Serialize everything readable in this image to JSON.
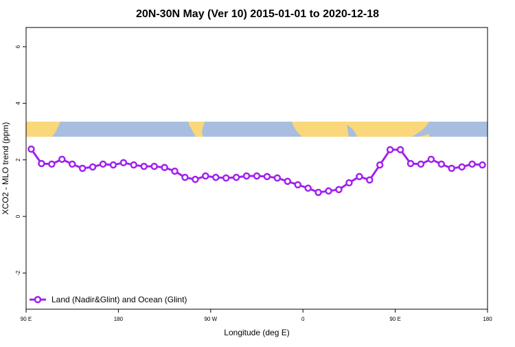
{
  "chart_data": {
    "type": "line",
    "title": "20N-30N May (Ver 10)   2015-01-01 to 2020-12-18",
    "x_label": "Longitude (deg E)",
    "y_label": "XCO2 - MLO trend (ppm)",
    "x": [
      95,
      105,
      115,
      125,
      135,
      145,
      155,
      165,
      175,
      185,
      195,
      205,
      215,
      225,
      235,
      245,
      255,
      265,
      275,
      285,
      295,
      305,
      315,
      325,
      335,
      345,
      355,
      365,
      375,
      385,
      395,
      405,
      415,
      425,
      435,
      445,
      455,
      465,
      475,
      485,
      495,
      505,
      515,
      525,
      535
    ],
    "series": [
      {
        "name": "Land (Nadir&Glint) and Ocean (Glint)",
        "color": "#a020f0",
        "values": [
          2.38,
          1.87,
          1.85,
          2.02,
          1.85,
          1.7,
          1.75,
          1.85,
          1.82,
          1.9,
          1.82,
          1.77,
          1.77,
          1.73,
          1.6,
          1.38,
          1.31,
          1.43,
          1.38,
          1.36,
          1.38,
          1.43,
          1.43,
          1.41,
          1.36,
          1.24,
          1.12,
          1.0,
          0.85,
          0.9,
          0.95,
          1.19,
          1.41,
          1.29,
          1.82,
          2.36,
          2.36,
          1.87,
          1.85,
          2.02,
          1.85,
          1.7,
          1.75,
          1.85,
          1.82
        ]
      }
    ],
    "xlim": [
      90,
      540
    ],
    "xticks": [
      {
        "value": 90,
        "label": "90 E"
      },
      180,
      {
        "value": 270,
        "label": "90 W"
      },
      {
        "value": 360,
        "label": "0"
      },
      {
        "value": 450,
        "label": "90 E"
      },
      {
        "value": 540,
        "label": "180"
      }
    ],
    "ylim": [
      -3.28,
      6.68
    ],
    "yticks": [
      -2,
      0,
      2,
      4,
      6
    ],
    "legend": "bottom-left"
  }
}
